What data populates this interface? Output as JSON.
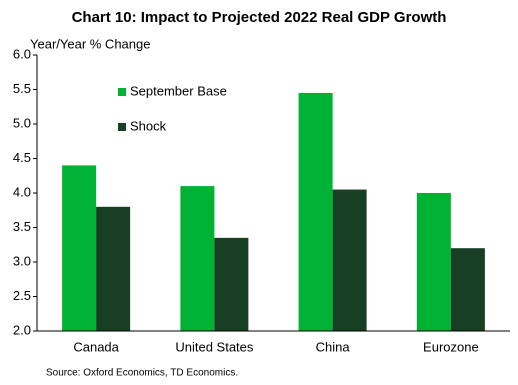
{
  "chart_data": {
    "type": "bar",
    "title": "Chart 10: Impact to Projected 2022 Real GDP Growth",
    "y_axis_label": "Year/Year % Change",
    "source": "Source: Oxford Economics,  TD Economics.",
    "categories": [
      "Canada",
      "United States",
      "China",
      "Eurozone"
    ],
    "series": [
      {
        "name": "September Base",
        "color": "#00b233",
        "values": [
          4.4,
          4.1,
          5.45,
          4.0
        ]
      },
      {
        "name": "Shock",
        "color": "#173f24",
        "values": [
          3.8,
          3.35,
          4.05,
          3.2
        ]
      }
    ],
    "ylim": [
      2,
      6
    ],
    "yticks": [
      {
        "value": 2,
        "label": "2.0"
      },
      {
        "value": 2.5,
        "label": "2.5"
      },
      {
        "value": 3,
        "label": "3.0"
      },
      {
        "value": 3.5,
        "label": "3.5"
      },
      {
        "value": 4,
        "label": "4.0"
      },
      {
        "value": 4.5,
        "label": "4.5"
      },
      {
        "value": 5,
        "label": "5.0"
      },
      {
        "value": 5.5,
        "label": "5.5"
      },
      {
        "value": 6,
        "label": "6.0"
      }
    ],
    "legend_position": "upper-left",
    "grid": false
  }
}
